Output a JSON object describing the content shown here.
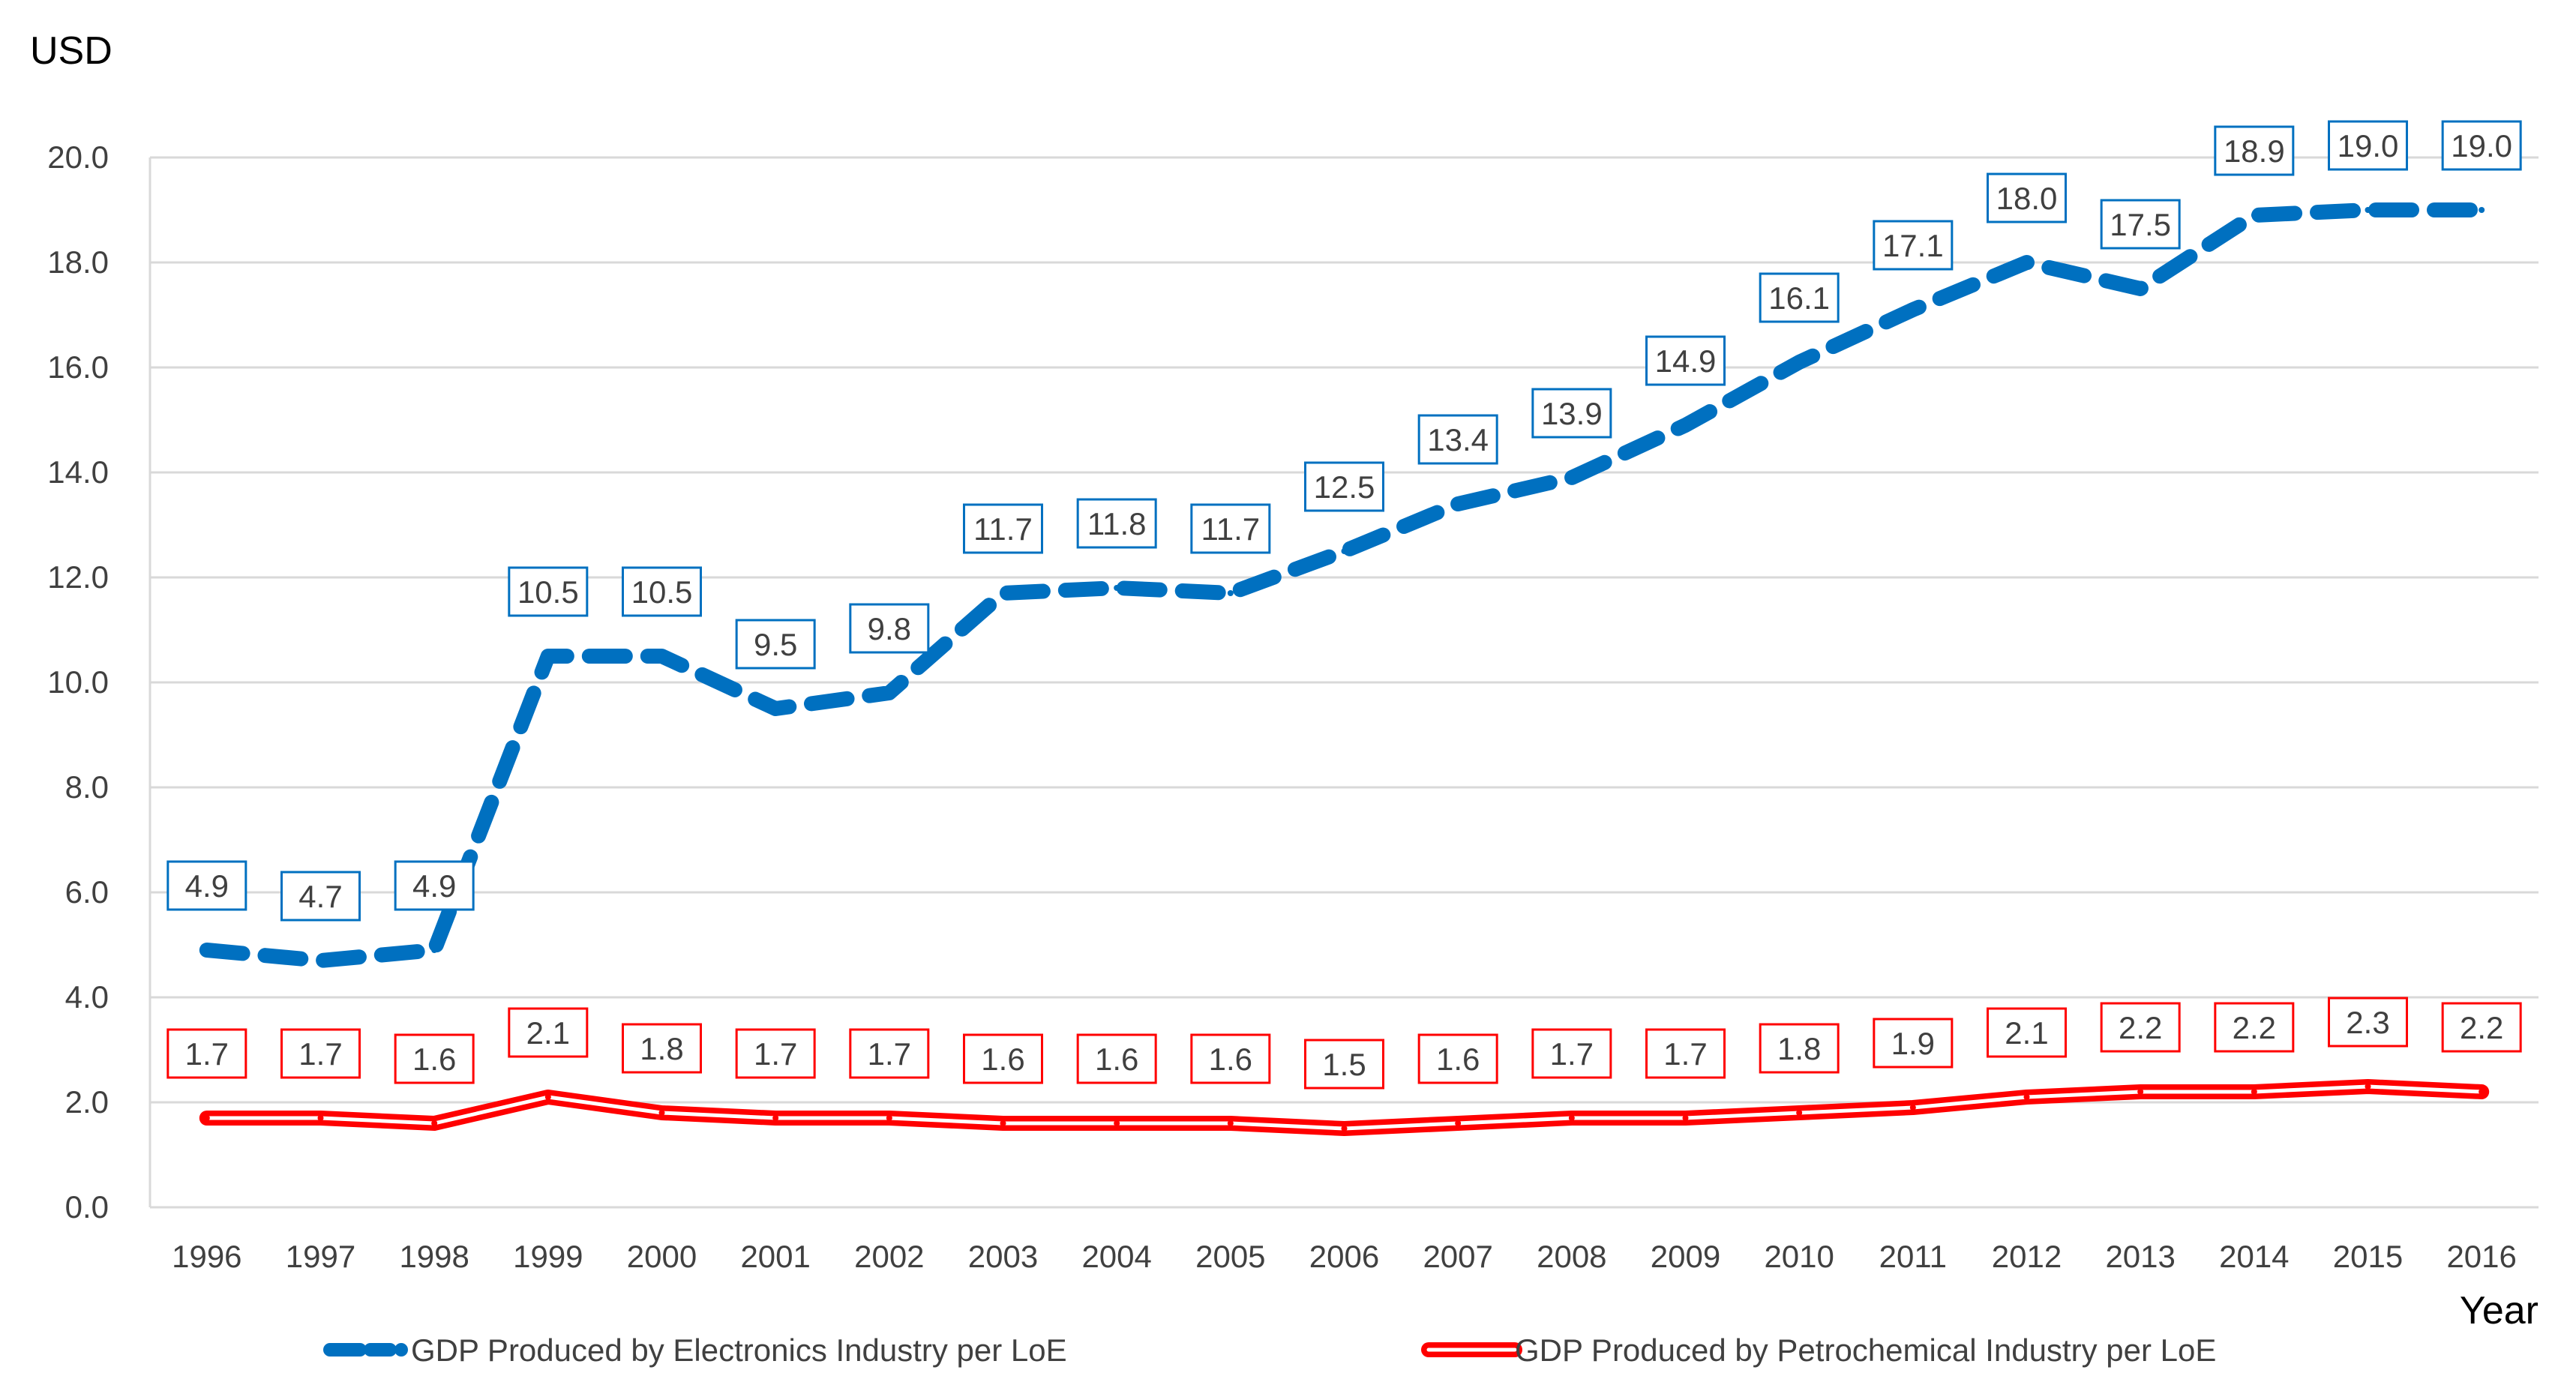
{
  "chart_data": {
    "type": "line",
    "title": "",
    "ylabel": "USD",
    "xlabel": "Year",
    "ylim": [
      0,
      20
    ],
    "y_tick_step": 2,
    "y_tick_labels": [
      "0.0",
      "2.0",
      "4.0",
      "6.0",
      "8.0",
      "10.0",
      "12.0",
      "14.0",
      "16.0",
      "18.0",
      "20.0"
    ],
    "grid": "horizontal",
    "legend_position": "bottom",
    "categories": [
      "1996",
      "1997",
      "1998",
      "1999",
      "2000",
      "2001",
      "2002",
      "2003",
      "2004",
      "2005",
      "2006",
      "2007",
      "2008",
      "2009",
      "2010",
      "2011",
      "2012",
      "2013",
      "2014",
      "2015",
      "2016"
    ],
    "series": [
      {
        "name": "GDP Produced by Electronics Industry per LoE",
        "color": "#0070C0",
        "style": "dashed",
        "values": [
          4.9,
          4.7,
          4.9,
          10.5,
          10.5,
          9.5,
          9.8,
          11.7,
          11.8,
          11.7,
          12.5,
          13.4,
          13.9,
          14.9,
          16.1,
          17.1,
          18.0,
          17.5,
          18.9,
          19.0,
          19.0
        ],
        "labels": [
          "4.9",
          "4.7",
          "4.9",
          "10.5",
          "10.5",
          "9.5",
          "9.8",
          "11.7",
          "11.8",
          "11.7",
          "12.5",
          "13.4",
          "13.9",
          "14.9",
          "16.1",
          "17.1",
          "18.0",
          "17.5",
          "18.9",
          "19.0",
          "19.0"
        ]
      },
      {
        "name": "GDP Produced by Petrochemical Industry per LoE",
        "color": "#FF0000",
        "style": "double",
        "values": [
          1.7,
          1.7,
          1.6,
          2.1,
          1.8,
          1.7,
          1.7,
          1.6,
          1.6,
          1.6,
          1.5,
          1.6,
          1.7,
          1.7,
          1.8,
          1.9,
          2.1,
          2.2,
          2.2,
          2.3,
          2.2
        ],
        "labels": [
          "1.7",
          "1.7",
          "1.6",
          "2.1",
          "1.8",
          "1.7",
          "1.7",
          "1.6",
          "1.6",
          "1.6",
          "1.5",
          "1.6",
          "1.7",
          "1.7",
          "1.8",
          "1.9",
          "2.1",
          "2.2",
          "2.2",
          "2.3",
          "2.2"
        ]
      }
    ]
  }
}
